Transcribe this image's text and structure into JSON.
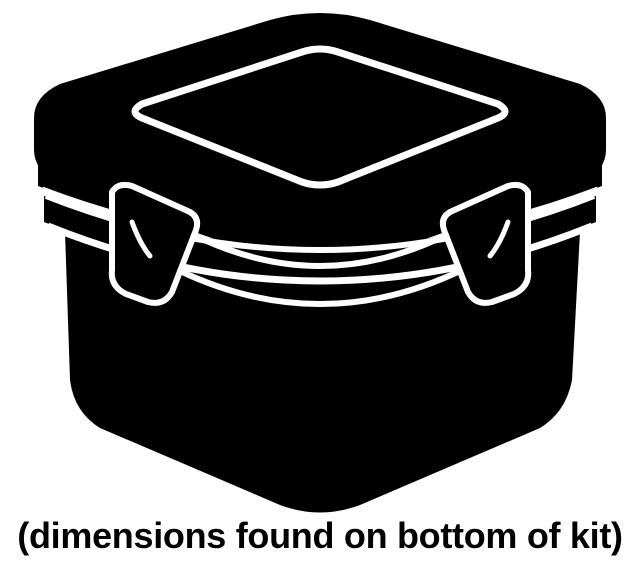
{
  "caption": {
    "text": "(dimensions found on bottom of kit)"
  },
  "icon": {
    "name": "storage-container-icon",
    "fill_color": "#000000",
    "background_color": "#ffffff"
  }
}
